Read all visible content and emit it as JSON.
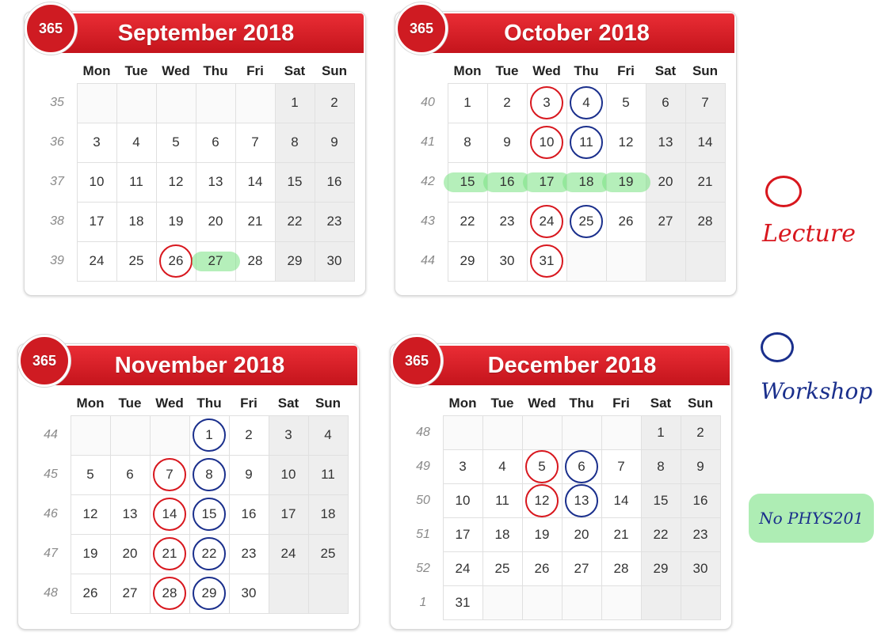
{
  "weekday_headers": [
    "Mon",
    "Tue",
    "Wed",
    "Thu",
    "Fri",
    "Sat",
    "Sun"
  ],
  "calendars": [
    {
      "badge": "365",
      "title": "September 2018",
      "weeks": [
        {
          "num": "35",
          "days": [
            "",
            "",
            "",
            "",
            "",
            "1",
            "2"
          ]
        },
        {
          "num": "36",
          "days": [
            "3",
            "4",
            "5",
            "6",
            "7",
            "8",
            "9"
          ]
        },
        {
          "num": "37",
          "days": [
            "10",
            "11",
            "12",
            "13",
            "14",
            "15",
            "16"
          ]
        },
        {
          "num": "38",
          "days": [
            "17",
            "18",
            "19",
            "20",
            "21",
            "22",
            "23"
          ]
        },
        {
          "num": "39",
          "days": [
            "24",
            "25",
            "26",
            "27",
            "28",
            "29",
            "30"
          ]
        }
      ],
      "lecture": [
        "26"
      ],
      "workshop": [],
      "highlight": [
        "27"
      ]
    },
    {
      "badge": "365",
      "title": "October 2018",
      "weeks": [
        {
          "num": "40",
          "days": [
            "1",
            "2",
            "3",
            "4",
            "5",
            "6",
            "7"
          ]
        },
        {
          "num": "41",
          "days": [
            "8",
            "9",
            "10",
            "11",
            "12",
            "13",
            "14"
          ]
        },
        {
          "num": "42",
          "days": [
            "15",
            "16",
            "17",
            "18",
            "19",
            "20",
            "21"
          ]
        },
        {
          "num": "43",
          "days": [
            "22",
            "23",
            "24",
            "25",
            "26",
            "27",
            "28"
          ]
        },
        {
          "num": "44",
          "days": [
            "29",
            "30",
            "31",
            "",
            "",
            "",
            ""
          ]
        }
      ],
      "lecture": [
        "3",
        "10",
        "24",
        "31"
      ],
      "workshop": [
        "4",
        "11",
        "25"
      ],
      "highlight": [
        "15",
        "16",
        "17",
        "18",
        "19"
      ]
    },
    {
      "badge": "365",
      "title": "November 2018",
      "weeks": [
        {
          "num": "44",
          "days": [
            "",
            "",
            "",
            "1",
            "2",
            "3",
            "4"
          ]
        },
        {
          "num": "45",
          "days": [
            "5",
            "6",
            "7",
            "8",
            "9",
            "10",
            "11"
          ]
        },
        {
          "num": "46",
          "days": [
            "12",
            "13",
            "14",
            "15",
            "16",
            "17",
            "18"
          ]
        },
        {
          "num": "47",
          "days": [
            "19",
            "20",
            "21",
            "22",
            "23",
            "24",
            "25"
          ]
        },
        {
          "num": "48",
          "days": [
            "26",
            "27",
            "28",
            "29",
            "30",
            "",
            ""
          ]
        }
      ],
      "lecture": [
        "7",
        "14",
        "21",
        "28"
      ],
      "workshop": [
        "1",
        "8",
        "15",
        "22",
        "29"
      ],
      "highlight": []
    },
    {
      "badge": "365",
      "title": "December 2018",
      "weeks": [
        {
          "num": "48",
          "days": [
            "",
            "",
            "",
            "",
            "",
            "1",
            "2"
          ]
        },
        {
          "num": "49",
          "days": [
            "3",
            "4",
            "5",
            "6",
            "7",
            "8",
            "9"
          ]
        },
        {
          "num": "50",
          "days": [
            "10",
            "11",
            "12",
            "13",
            "14",
            "15",
            "16"
          ]
        },
        {
          "num": "51",
          "days": [
            "17",
            "18",
            "19",
            "20",
            "21",
            "22",
            "23"
          ]
        },
        {
          "num": "52",
          "days": [
            "24",
            "25",
            "26",
            "27",
            "28",
            "29",
            "30"
          ]
        },
        {
          "num": "1",
          "days": [
            "31",
            "",
            "",
            "",
            "",
            "",
            ""
          ]
        }
      ],
      "lecture": [
        "5",
        "12"
      ],
      "workshop": [
        "6",
        "13"
      ],
      "highlight": []
    }
  ],
  "legend": {
    "lecture_label": "Lecture",
    "workshop_label": "Workshop",
    "no_phys_label": "No PHYS201",
    "lecture_color": "#d8171e",
    "workshop_color": "#1a2f8c",
    "highlight_color": "#78e182"
  }
}
